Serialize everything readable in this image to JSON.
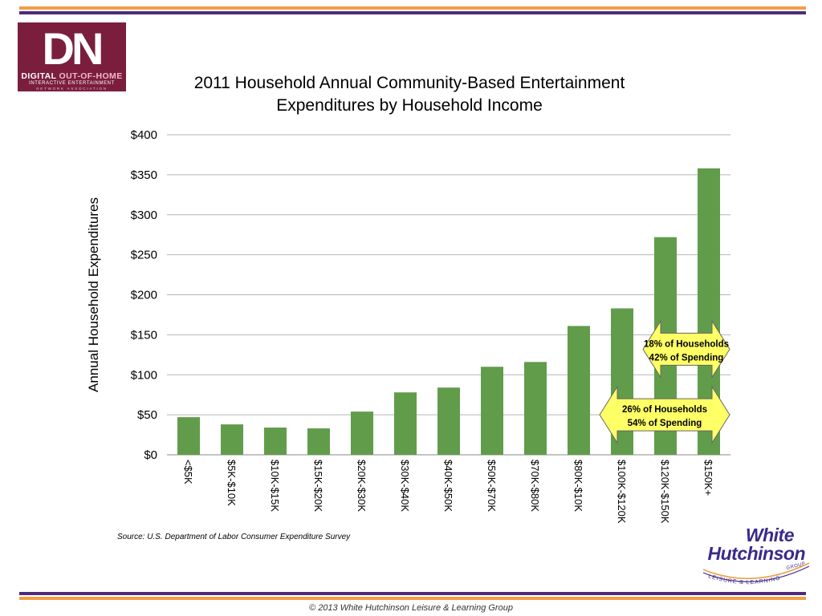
{
  "logo": {
    "mark": "DN",
    "line1_a": "DIGITAL",
    "line1_b": "OUT-OF-HOME",
    "line2": "INTERACTIVE ENTERTAINMENT",
    "line3": "NETWORK ASSOCIATION"
  },
  "chart_data": {
    "type": "bar",
    "title_lines": [
      "2011 Household Annual Community-Based Entertainment",
      "Expenditures by Household Income"
    ],
    "ylabel": "Annual Household Expenditures",
    "xlabel": "",
    "ylim": [
      0,
      400
    ],
    "yticks": [
      0,
      50,
      100,
      150,
      200,
      250,
      300,
      350,
      400
    ],
    "ytick_labels": [
      "$0",
      "$50",
      "$100",
      "$150",
      "$200",
      "$250",
      "$300",
      "$350",
      "$400"
    ],
    "categories": [
      "<$5K",
      "$5K-$10K",
      "$10K-$15K",
      "$15K-$20K",
      "$20K-$30K",
      "$30K-$40K",
      "$40K-$50K",
      "$50K-$70K",
      "$70K-$80K",
      "$80K-$10K",
      "$100K-$120K",
      "$120K-$150K",
      "$150K+"
    ],
    "values": [
      47,
      38,
      34,
      33,
      54,
      78,
      84,
      110,
      116,
      161,
      183,
      272,
      358
    ],
    "bar_color": "#619c4b",
    "grid": true,
    "annotations": [
      {
        "lines": [
          "18% of Households",
          "42% of Spending"
        ],
        "from_category": 11,
        "to_category": 12,
        "y": 132
      },
      {
        "lines": [
          "26% of Households",
          "54% of Spending"
        ],
        "from_category": 10,
        "to_category": 12,
        "y": 50
      }
    ],
    "annotation_color": "#ffff66"
  },
  "source": "Source:  U.S. Department of Labor Consumer Expenditure Survey",
  "footer": "© 2013 White Hutchinson Leisure & Learning Group",
  "wh_logo": {
    "line1": "White",
    "line2": "Hutchinson",
    "arc_text": "LEISURE & LEARNING",
    "group_text": "GROUP"
  }
}
